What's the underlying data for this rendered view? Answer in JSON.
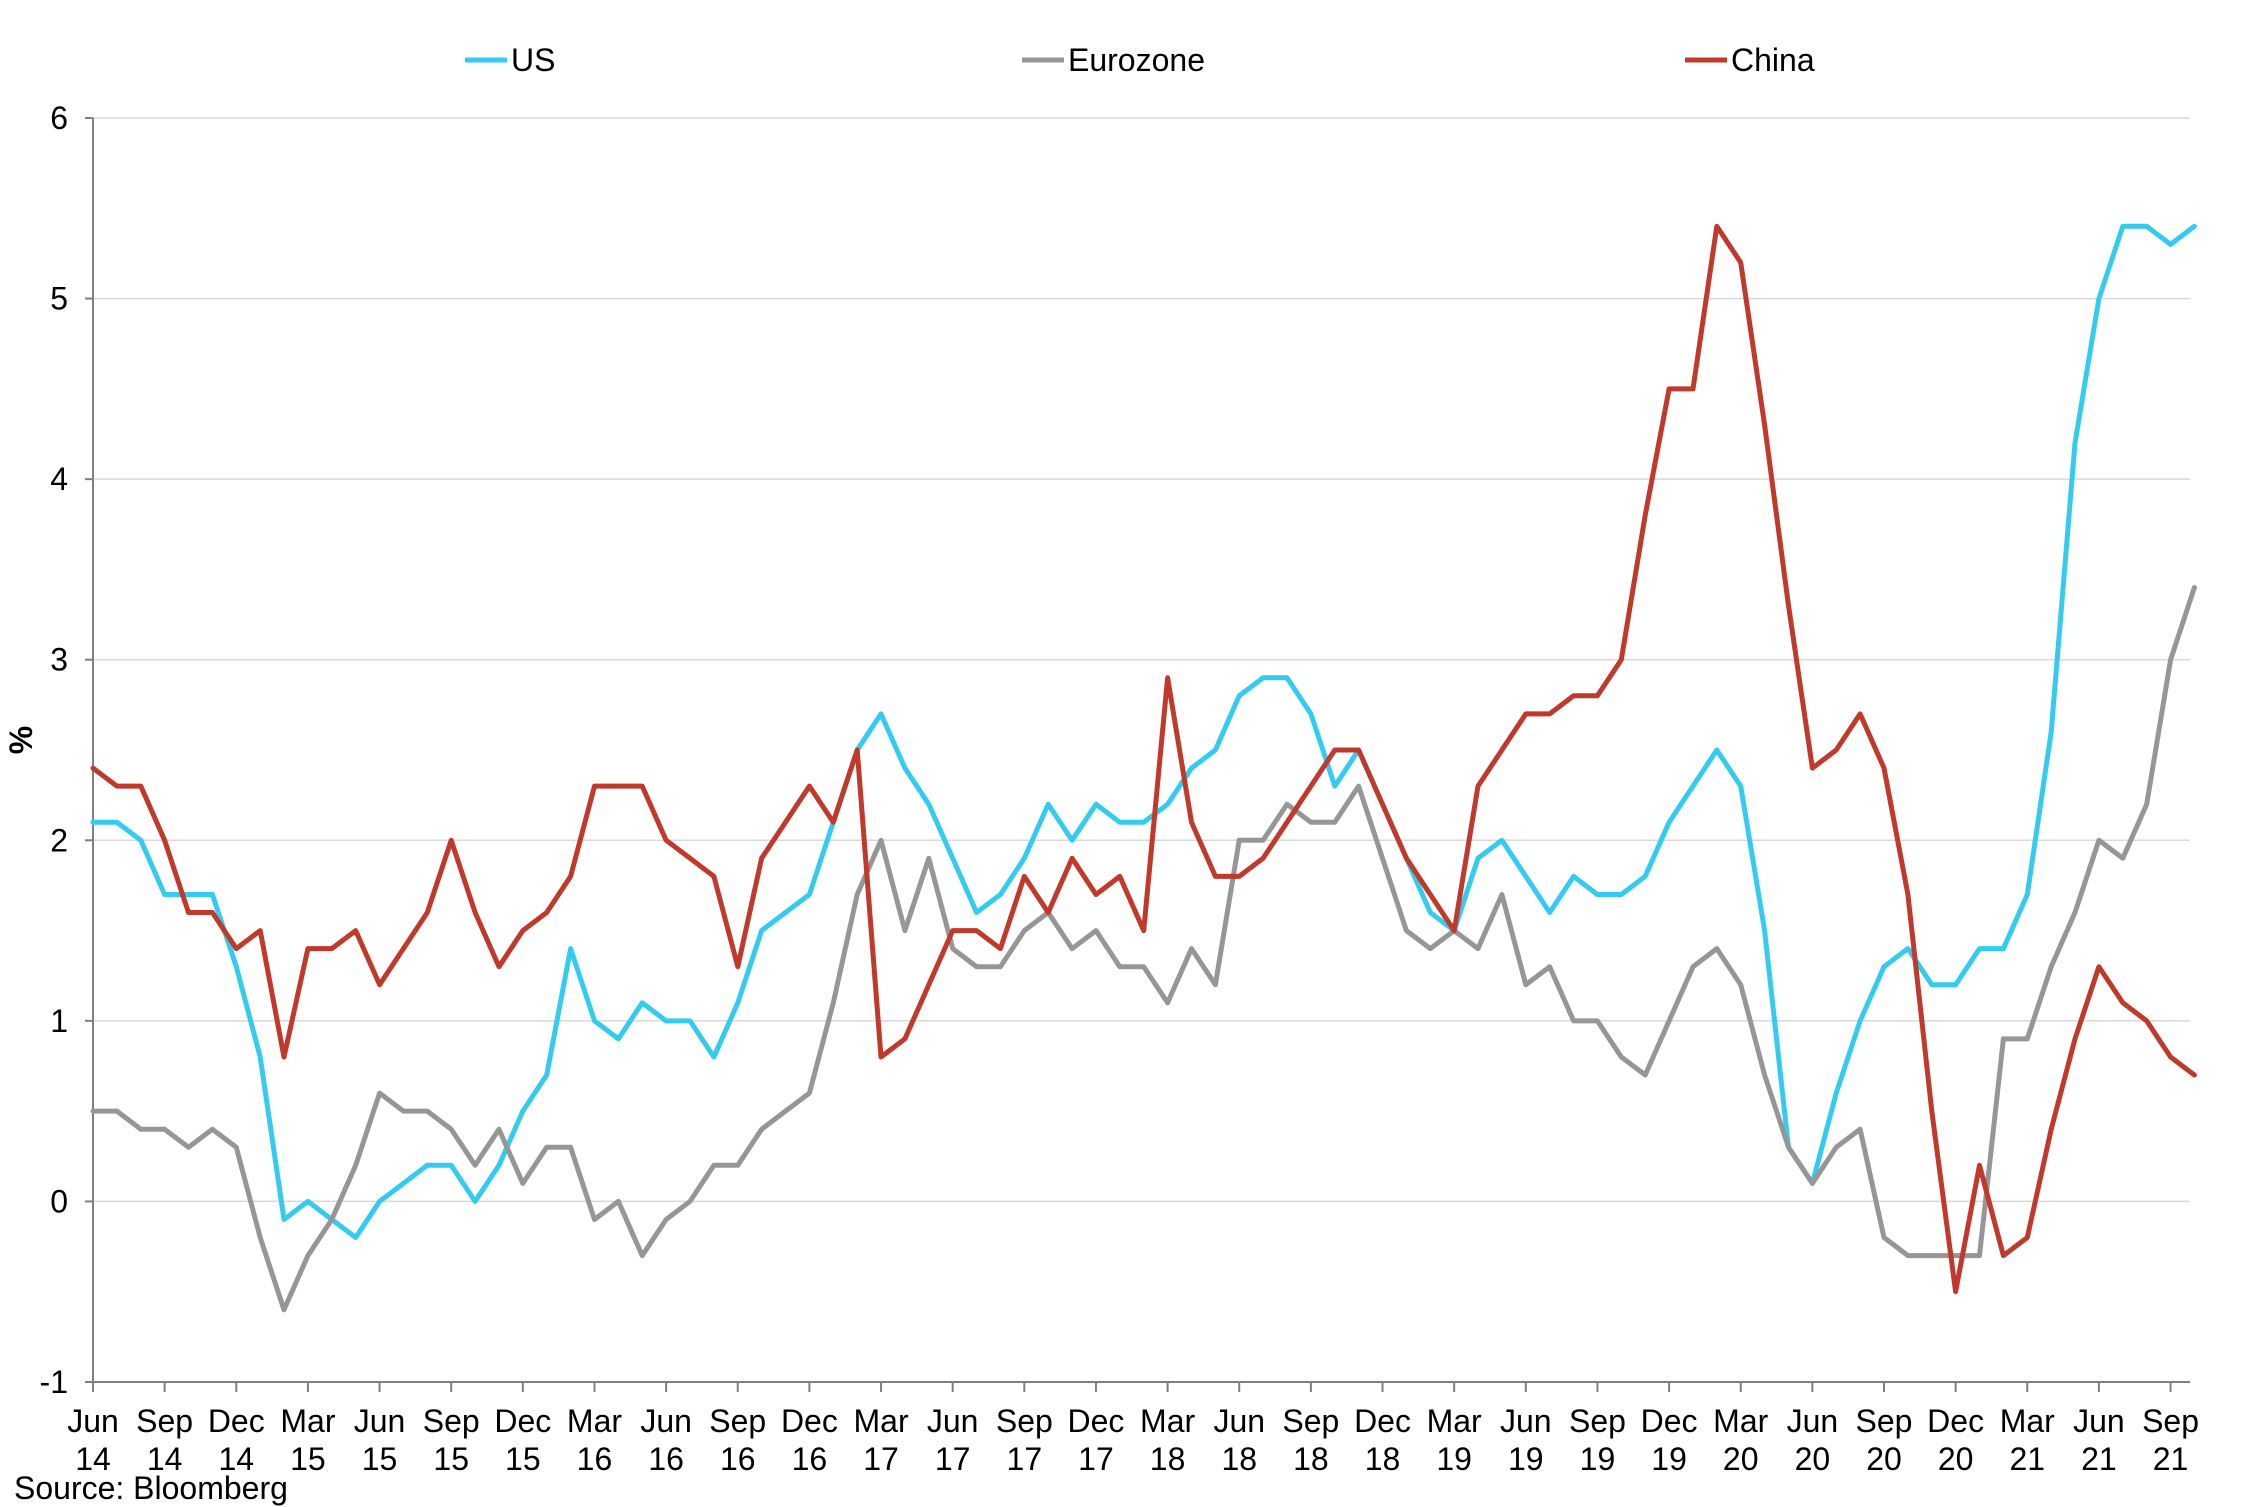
{
  "chart_data": {
    "type": "line",
    "ylabel": "%",
    "ylim": [
      -1,
      6
    ],
    "yticks": [
      -1,
      0,
      1,
      2,
      3,
      4,
      5,
      6
    ],
    "grid": true,
    "legend_position": "top",
    "source": "Source:  Bloomberg",
    "x_ticks": [
      {
        "month": "Jun",
        "year": "14"
      },
      {
        "month": "Sep",
        "year": "14"
      },
      {
        "month": "Dec",
        "year": "14"
      },
      {
        "month": "Mar",
        "year": "15"
      },
      {
        "month": "Jun",
        "year": "15"
      },
      {
        "month": "Sep",
        "year": "15"
      },
      {
        "month": "Dec",
        "year": "15"
      },
      {
        "month": "Mar",
        "year": "16"
      },
      {
        "month": "Jun",
        "year": "16"
      },
      {
        "month": "Sep",
        "year": "16"
      },
      {
        "month": "Dec",
        "year": "16"
      },
      {
        "month": "Mar",
        "year": "17"
      },
      {
        "month": "Jun",
        "year": "17"
      },
      {
        "month": "Sep",
        "year": "17"
      },
      {
        "month": "Dec",
        "year": "17"
      },
      {
        "month": "Mar",
        "year": "18"
      },
      {
        "month": "Jun",
        "year": "18"
      },
      {
        "month": "Sep",
        "year": "18"
      },
      {
        "month": "Dec",
        "year": "18"
      },
      {
        "month": "Mar",
        "year": "19"
      },
      {
        "month": "Jun",
        "year": "19"
      },
      {
        "month": "Sep",
        "year": "19"
      },
      {
        "month": "Dec",
        "year": "19"
      },
      {
        "month": "Mar",
        "year": "20"
      },
      {
        "month": "Jun",
        "year": "20"
      },
      {
        "month": "Sep",
        "year": "20"
      },
      {
        "month": "Dec",
        "year": "20"
      },
      {
        "month": "Mar",
        "year": "21"
      },
      {
        "month": "Jun",
        "year": "21"
      },
      {
        "month": "Sep",
        "year": "21"
      }
    ],
    "x_start": "2014-06",
    "x_end": "2021-09",
    "series": [
      {
        "name": "US",
        "color": "#33ccf0",
        "values": [
          2.1,
          2.1,
          2.0,
          1.7,
          1.7,
          1.7,
          1.3,
          0.8,
          -0.1,
          0.0,
          -0.1,
          -0.2,
          0.0,
          0.1,
          0.2,
          0.2,
          0.0,
          0.2,
          0.5,
          0.7,
          1.4,
          1.0,
          0.9,
          1.1,
          1.0,
          1.0,
          0.8,
          1.1,
          1.5,
          1.6,
          1.7,
          2.1,
          2.5,
          2.7,
          2.4,
          2.2,
          1.9,
          1.6,
          1.7,
          1.9,
          2.2,
          2.0,
          2.2,
          2.1,
          2.1,
          2.2,
          2.4,
          2.5,
          2.8,
          2.9,
          2.9,
          2.7,
          2.3,
          2.5,
          2.2,
          1.9,
          1.6,
          1.5,
          1.9,
          2.0,
          1.8,
          1.6,
          1.8,
          1.7,
          1.7,
          1.8,
          2.1,
          2.3,
          2.5,
          2.3,
          1.5,
          0.3,
          0.1,
          0.6,
          1.0,
          1.3,
          1.4,
          1.2,
          1.2,
          1.4,
          1.4,
          1.7,
          2.6,
          4.2,
          5.0,
          5.4,
          5.4,
          5.3,
          5.4
        ]
      },
      {
        "name": "Eurozone",
        "color": "#969696",
        "values": [
          0.5,
          0.5,
          0.4,
          0.4,
          0.3,
          0.4,
          0.3,
          -0.2,
          -0.6,
          -0.3,
          -0.1,
          0.2,
          0.6,
          0.5,
          0.5,
          0.4,
          0.2,
          0.4,
          0.1,
          0.3,
          0.3,
          -0.1,
          0.0,
          -0.3,
          -0.1,
          0.0,
          0.2,
          0.2,
          0.4,
          0.5,
          0.6,
          1.1,
          1.7,
          2.0,
          1.5,
          1.9,
          1.4,
          1.3,
          1.3,
          1.5,
          1.6,
          1.4,
          1.5,
          1.3,
          1.3,
          1.1,
          1.4,
          1.2,
          2.0,
          2.0,
          2.2,
          2.1,
          2.1,
          2.3,
          1.9,
          1.5,
          1.4,
          1.5,
          1.4,
          1.7,
          1.2,
          1.3,
          1.0,
          1.0,
          0.8,
          0.7,
          1.0,
          1.3,
          1.4,
          1.2,
          0.7,
          0.3,
          0.1,
          0.3,
          0.4,
          -0.2,
          -0.3,
          -0.3,
          -0.3,
          -0.3,
          0.9,
          0.9,
          1.3,
          1.6,
          2.0,
          1.9,
          2.2,
          3.0,
          3.4
        ]
      },
      {
        "name": "China",
        "color": "#c0392b",
        "values": [
          2.4,
          2.3,
          2.3,
          2.0,
          1.6,
          1.6,
          1.4,
          1.5,
          0.8,
          1.4,
          1.4,
          1.5,
          1.2,
          1.4,
          1.6,
          2.0,
          1.6,
          1.3,
          1.5,
          1.6,
          1.8,
          2.3,
          2.3,
          2.3,
          2.0,
          1.9,
          1.8,
          1.3,
          1.9,
          2.1,
          2.3,
          2.1,
          2.5,
          0.8,
          0.9,
          1.2,
          1.5,
          1.5,
          1.4,
          1.8,
          1.6,
          1.9,
          1.7,
          1.8,
          1.5,
          2.9,
          2.1,
          1.8,
          1.8,
          1.9,
          2.1,
          2.3,
          2.5,
          2.5,
          2.2,
          1.9,
          1.7,
          1.5,
          2.3,
          2.5,
          2.7,
          2.7,
          2.8,
          2.8,
          3.0,
          3.8,
          4.5,
          4.5,
          5.4,
          5.2,
          4.3,
          3.3,
          2.4,
          2.5,
          2.7,
          2.4,
          1.7,
          0.5,
          -0.5,
          0.2,
          -0.3,
          -0.2,
          0.4,
          0.9,
          1.3,
          1.1,
          1.0,
          0.8,
          0.7
        ]
      }
    ]
  }
}
